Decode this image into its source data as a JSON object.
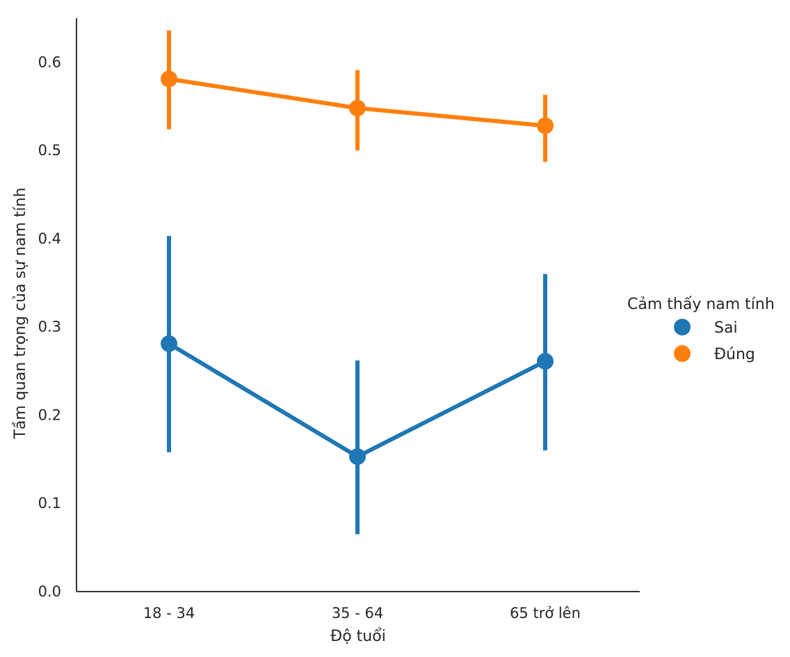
{
  "chart_data": {
    "type": "line",
    "title": "",
    "xlabel": "Độ tuổi",
    "ylabel": "Tầm quan trọng của sự nam tính",
    "categories": [
      "18 - 34",
      "35 - 64",
      "65 trở lên"
    ],
    "ylim": [
      0.0,
      0.65
    ],
    "yticks": [
      0.0,
      0.1,
      0.2,
      0.3,
      0.4,
      0.5,
      0.6
    ],
    "ytick_labels": [
      "0.0",
      "0.1",
      "0.2",
      "0.3",
      "0.4",
      "0.5",
      "0.6"
    ],
    "grid": false,
    "legend": {
      "title": "Cảm thấy nam tính",
      "placement": "right"
    },
    "series": [
      {
        "name": "Sai",
        "color": "#1f77b4",
        "values": [
          0.281,
          0.153,
          0.261
        ],
        "ci_low": [
          0.158,
          0.065,
          0.16
        ],
        "ci_high": [
          0.403,
          0.262,
          0.36
        ]
      },
      {
        "name": "Đúng",
        "color": "#ff7f0e",
        "values": [
          0.581,
          0.548,
          0.528
        ],
        "ci_low": [
          0.524,
          0.5,
          0.487
        ],
        "ci_high": [
          0.636,
          0.591,
          0.563
        ]
      }
    ]
  }
}
